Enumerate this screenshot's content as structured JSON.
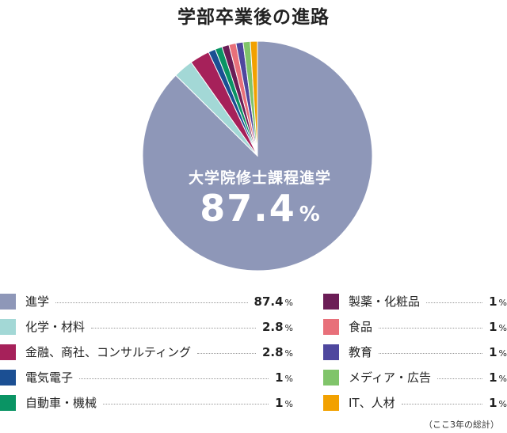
{
  "title": "学部卒業後の進路",
  "center": {
    "label": "大学院修士課程進学",
    "value": "87.4",
    "unit": "%"
  },
  "note": "（ここ3年の総計）",
  "chart_data": {
    "type": "pie",
    "title": "学部卒業後の進路",
    "unit": "%",
    "slices": [
      {
        "label": "進学",
        "value": 87.4,
        "display": "87.4",
        "color": "#8e97b8"
      },
      {
        "label": "化学・材料",
        "value": 2.8,
        "display": "2.8",
        "color": "#a3d8d6"
      },
      {
        "label": "金融、商社、コンサルティング",
        "value": 2.8,
        "display": "2.8",
        "color": "#a6215a"
      },
      {
        "label": "電気電子",
        "value": 1,
        "display": "1",
        "color": "#1b4f93"
      },
      {
        "label": "自動車・機械",
        "value": 1,
        "display": "1",
        "color": "#0a9464"
      },
      {
        "label": "製薬・化粧品",
        "value": 1,
        "display": "1",
        "color": "#6b1d56"
      },
      {
        "label": "食品",
        "value": 1,
        "display": "1",
        "color": "#e8707a"
      },
      {
        "label": "教育",
        "value": 1,
        "display": "1",
        "color": "#4e479e"
      },
      {
        "label": "メディア・広告",
        "value": 1,
        "display": "1",
        "color": "#80c46a"
      },
      {
        "label": "IT、人材",
        "value": 1,
        "display": "1",
        "color": "#f2a100"
      }
    ]
  }
}
